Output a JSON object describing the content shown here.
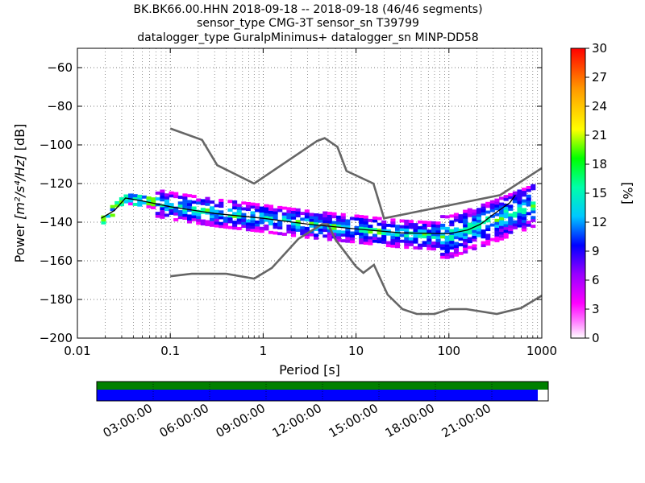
{
  "chart_data": {
    "type": "heatmap",
    "title_lines": [
      "BK.BK66.00.HHN   2018-09-18 -- 2018-09-18  (46/46 segments)",
      "sensor_type CMG-3T sensor_sn T39799",
      "datalogger_type GuralpMinimus+ datalogger_sn MINP-DD58"
    ],
    "xlabel": "Period [s]",
    "ylabel_prefix": "Power ",
    "ylabel_units": "[m²/s⁴/Hz]",
    "ylabel_suffix": " [dB]",
    "x_scale": "log",
    "xlim": [
      0.01,
      1000
    ],
    "ylim": [
      -200,
      -50
    ],
    "x_ticks": [
      0.01,
      0.1,
      1,
      10,
      100,
      1000
    ],
    "x_tick_labels": [
      "0.01",
      "0.1",
      "1",
      "10",
      "100",
      "1000"
    ],
    "y_ticks": [
      -200,
      -180,
      -160,
      -140,
      -120,
      -100,
      -80,
      -60
    ],
    "y_tick_labels": [
      "−200",
      "−180",
      "−160",
      "−140",
      "−120",
      "−100",
      "−80",
      "−60"
    ],
    "grid": true,
    "colorbar": {
      "label": "[%]",
      "range": [
        0,
        30
      ],
      "ticks": [
        0,
        3,
        6,
        9,
        12,
        15,
        18,
        21,
        24,
        27,
        30
      ],
      "tick_labels": [
        "0",
        "3",
        "6",
        "9",
        "12",
        "15",
        "18",
        "21",
        "24",
        "27",
        "30"
      ],
      "colormap": [
        "#ffffff",
        "#ff00ff",
        "#9900ff",
        "#0000ff",
        "#00c8ff",
        "#00ffaa",
        "#00ff00",
        "#ffff00",
        "#ff9900",
        "#ff0000"
      ]
    },
    "noise_models": [
      {
        "name": "NHNM",
        "color": "#666666",
        "points": [
          [
            0.1,
            -91.5
          ],
          [
            0.22,
            -97.4
          ],
          [
            0.32,
            -110.5
          ],
          [
            0.8,
            -120.0
          ],
          [
            3.8,
            -98.0
          ],
          [
            4.6,
            -96.5
          ],
          [
            6.3,
            -101.0
          ],
          [
            7.9,
            -113.5
          ],
          [
            15.4,
            -120.0
          ],
          [
            20.0,
            -138.0
          ],
          [
            354.8,
            -126.0
          ],
          [
            1000,
            -112.0
          ]
        ]
      },
      {
        "name": "NLNM",
        "color": "#666666",
        "points": [
          [
            0.1,
            -168.0
          ],
          [
            0.17,
            -166.7
          ],
          [
            0.4,
            -166.7
          ],
          [
            0.8,
            -169.2
          ],
          [
            1.24,
            -163.7
          ],
          [
            2.4,
            -148.6
          ],
          [
            4.3,
            -141.1
          ],
          [
            5.0,
            -141.1
          ],
          [
            6.0,
            -149.0
          ],
          [
            10.0,
            -163.0
          ],
          [
            12.0,
            -166.2
          ],
          [
            15.6,
            -162.1
          ],
          [
            21.9,
            -177.5
          ],
          [
            31.6,
            -185.0
          ],
          [
            45.0,
            -187.5
          ],
          [
            70.0,
            -187.5
          ],
          [
            101.0,
            -185.0
          ],
          [
            154.0,
            -185.0
          ],
          [
            328.0,
            -187.5
          ],
          [
            600.0,
            -184.4
          ],
          [
            1000,
            -178.0
          ]
        ]
      }
    ],
    "psd_band": {
      "points": [
        [
          0.018,
          -139
        ],
        [
          0.024,
          -134
        ],
        [
          0.03,
          -130
        ],
        [
          0.035,
          -128
        ],
        [
          0.05,
          -129
        ],
        [
          0.1,
          -132
        ],
        [
          0.3,
          -135.5
        ],
        [
          1,
          -138.5
        ],
        [
          3,
          -141.5
        ],
        [
          10,
          -144
        ],
        [
          30,
          -146.5
        ],
        [
          100,
          -148
        ],
        [
          300,
          -140
        ],
        [
          1000,
          -130
        ]
      ],
      "spread_db": 14
    },
    "mode_line": {
      "color": "#000000",
      "points": [
        [
          0.018,
          -138
        ],
        [
          0.025,
          -134
        ],
        [
          0.033,
          -127.5
        ],
        [
          0.05,
          -129
        ],
        [
          0.1,
          -132
        ],
        [
          0.3,
          -135.5
        ],
        [
          1,
          -138
        ],
        [
          3,
          -141
        ],
        [
          10,
          -143.5
        ],
        [
          30,
          -145.5
        ],
        [
          100,
          -146
        ],
        [
          160,
          -144
        ],
        [
          220,
          -141
        ],
        [
          300,
          -136
        ],
        [
          450,
          -130
        ],
        [
          520,
          -126
        ]
      ]
    }
  },
  "timeline": {
    "data_coverage_color": "#008000",
    "gap_color": "#0000ff",
    "hour_labels": [
      "03:00:00",
      "06:00:00",
      "09:00:00",
      "12:00:00",
      "15:00:00",
      "18:00:00",
      "21:00:00"
    ]
  }
}
